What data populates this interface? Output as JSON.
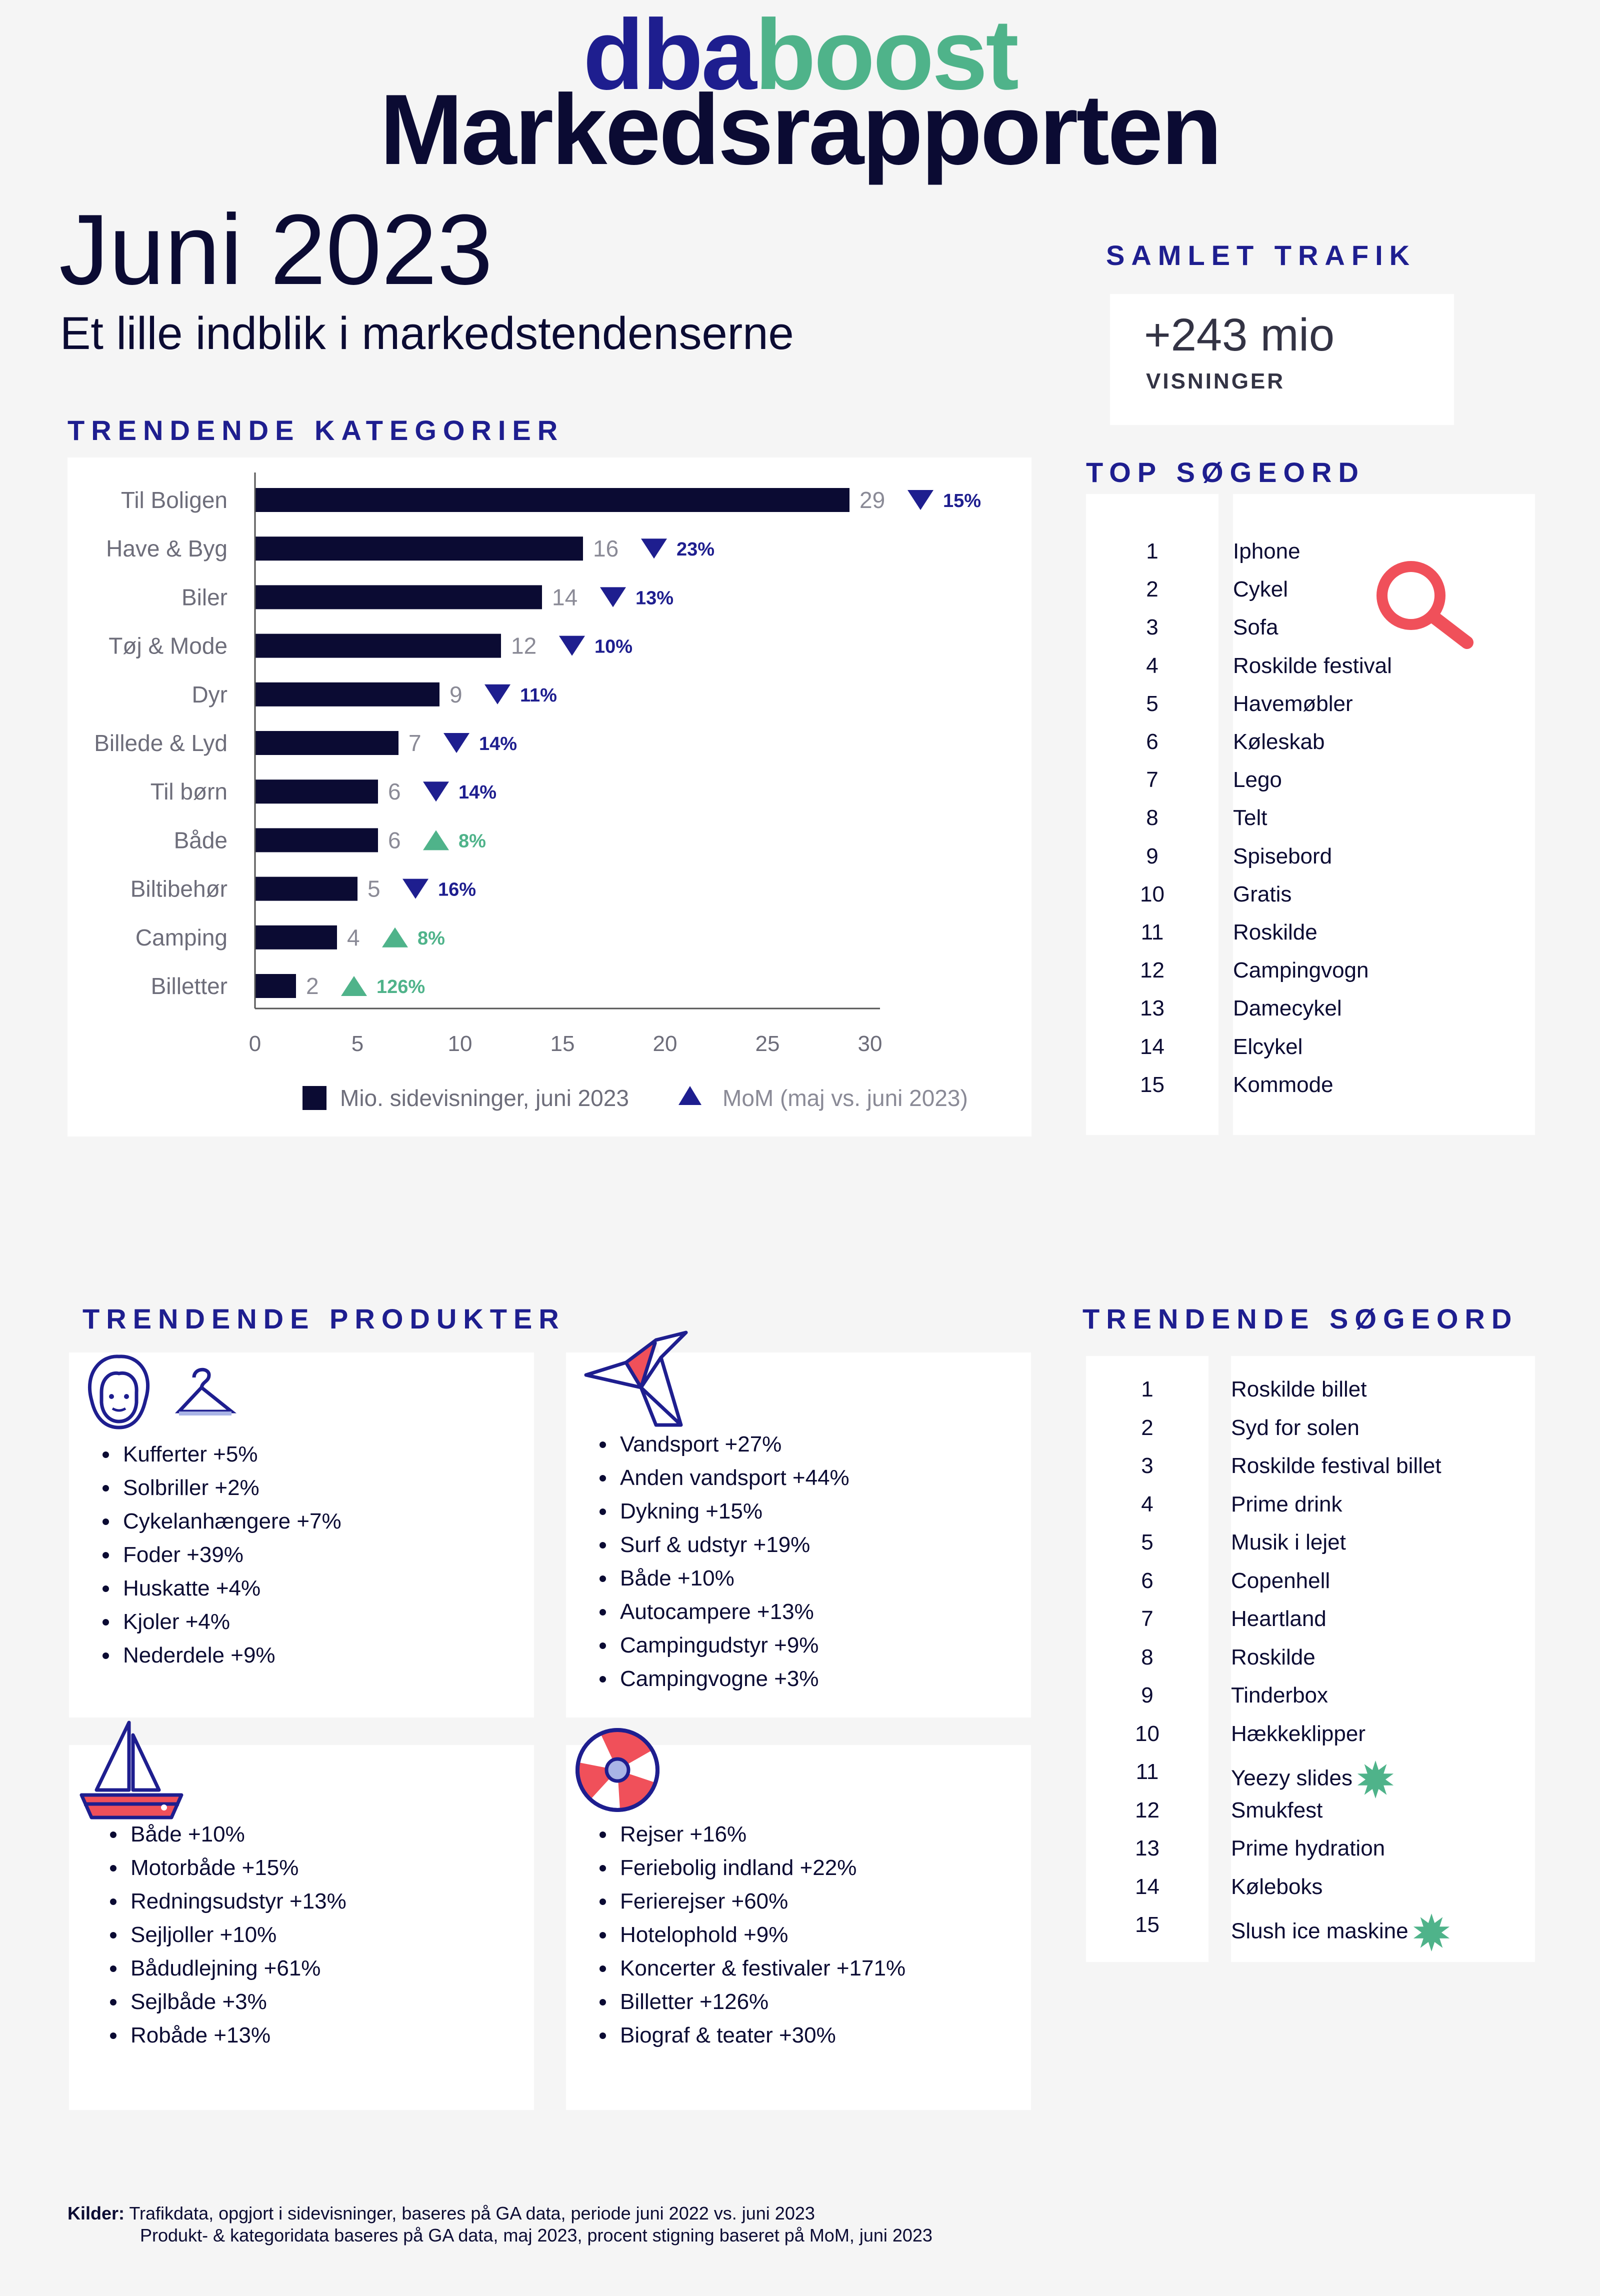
{
  "brand": {
    "part1": "dba",
    "part2": "boost",
    "title": "Markedsrapporten"
  },
  "header": {
    "month": "Juni 2023",
    "subtitle": "Et lille indblik i markedstendenserne"
  },
  "traffic": {
    "heading": "SAMLET TRAFIK",
    "value": "+243 mio",
    "label": "VISNINGER"
  },
  "sections": {
    "trending_categories": "TRENDENDE KATEGORIER",
    "top_search": "TOP SØGEORD",
    "trending_products": "TRENDENDE PRODUKTER",
    "trending_search": "TRENDENDE SØGEORD"
  },
  "colors": {
    "navy": "#0b0b33",
    "blue": "#1e1e8f",
    "green": "#4fb38a",
    "red": "#f0505a"
  },
  "chart_data": {
    "type": "bar",
    "orientation": "horizontal",
    "categories": [
      "Til Boligen",
      "Have & Byg",
      "Biler",
      "Tøj & Mode",
      "Dyr",
      "Billede & Lyd",
      "Til børn",
      "Både",
      "Biltibehør",
      "Camping",
      "Billetter"
    ],
    "values": [
      29,
      16,
      14,
      12,
      9,
      7,
      6,
      6,
      5,
      4,
      2
    ],
    "mom": [
      {
        "label": "15%",
        "dir": "down"
      },
      {
        "label": "23%",
        "dir": "down"
      },
      {
        "label": "13%",
        "dir": "down"
      },
      {
        "label": "10%",
        "dir": "down"
      },
      {
        "label": "11%",
        "dir": "down"
      },
      {
        "label": "14%",
        "dir": "down"
      },
      {
        "label": "14%",
        "dir": "down"
      },
      {
        "label": "8%",
        "dir": "up"
      },
      {
        "label": "16%",
        "dir": "down"
      },
      {
        "label": "8%",
        "dir": "up"
      },
      {
        "label": "126%",
        "dir": "up"
      }
    ],
    "xlim": [
      0,
      30
    ],
    "xticks": [
      0,
      5,
      10,
      15,
      20,
      25,
      30
    ],
    "legend": [
      "Mio. sidevisninger, juni 2023",
      "MoM (maj vs. juni 2023)"
    ],
    "legend_position": "bottom",
    "grid": false
  },
  "top_search": [
    "Iphone",
    "Cykel",
    "Sofa",
    "Roskilde festival",
    "Havemøbler",
    "Køleskab",
    "Lego",
    "Telt",
    "Spisebord",
    "Gratis",
    "Roskilde",
    "Campingvogn",
    "Damecykel",
    "Elcykel",
    "Kommode"
  ],
  "trending_search": [
    {
      "term": "Roskilde billet",
      "star": false
    },
    {
      "term": "Syd for solen",
      "star": false
    },
    {
      "term": "Roskilde festival billet",
      "star": false
    },
    {
      "term": "Prime drink",
      "star": false
    },
    {
      "term": "Musik i lejet",
      "star": false
    },
    {
      "term": "Copenhell",
      "star": false
    },
    {
      "term": "Heartland",
      "star": false
    },
    {
      "term": "Roskilde",
      "star": false
    },
    {
      "term": "Tinderbox",
      "star": false
    },
    {
      "term": "Hækkeklipper",
      "star": false
    },
    {
      "term": "Yeezy slides",
      "star": true
    },
    {
      "term": "Smukfest",
      "star": false
    },
    {
      "term": "Prime hydration",
      "star": false
    },
    {
      "term": "Køleboks",
      "star": false
    },
    {
      "term": "Slush ice maskine",
      "star": true
    }
  ],
  "products": {
    "fashion": [
      "Kufferter +5%",
      "Solbriller +2%",
      "Cykelanhængere +7%",
      "Foder +39%",
      "Huskatte +4%",
      "Kjoler +4%",
      "Nederdele +9%"
    ],
    "sports": [
      "Vandsport +27%",
      "Anden vandsport +44%",
      "Dykning +15%",
      "Surf & udstyr +19%",
      "Både +10%",
      "Autocampere +13%",
      "Campingudstyr +9%",
      "Campingvogne +3%"
    ],
    "boats": [
      "Både +10%",
      "Motorbåde +15%",
      "Redningsudstyr +13%",
      "Sejljoller +10%",
      "Bådudlejning +61%",
      "Sejlbåde +3%",
      "Robåde +13%"
    ],
    "travel": [
      "Rejser +16%",
      "Feriebolig indland +22%",
      "Ferierejser +60%",
      "Hotelophold +9%",
      "Koncerter & festivaler +171%",
      "Billetter +126%",
      "Biograf & teater +30%"
    ]
  },
  "footer": {
    "label": "Kilder:",
    "line1": "Trafikdata, opgjort i sidevisninger, baseres på GA data, periode juni 2022 vs. juni 2023",
    "line2": "Produkt- & kategoridata baseres på GA data, maj 2023, procent stigning baseret på MoM, juni 2023"
  }
}
